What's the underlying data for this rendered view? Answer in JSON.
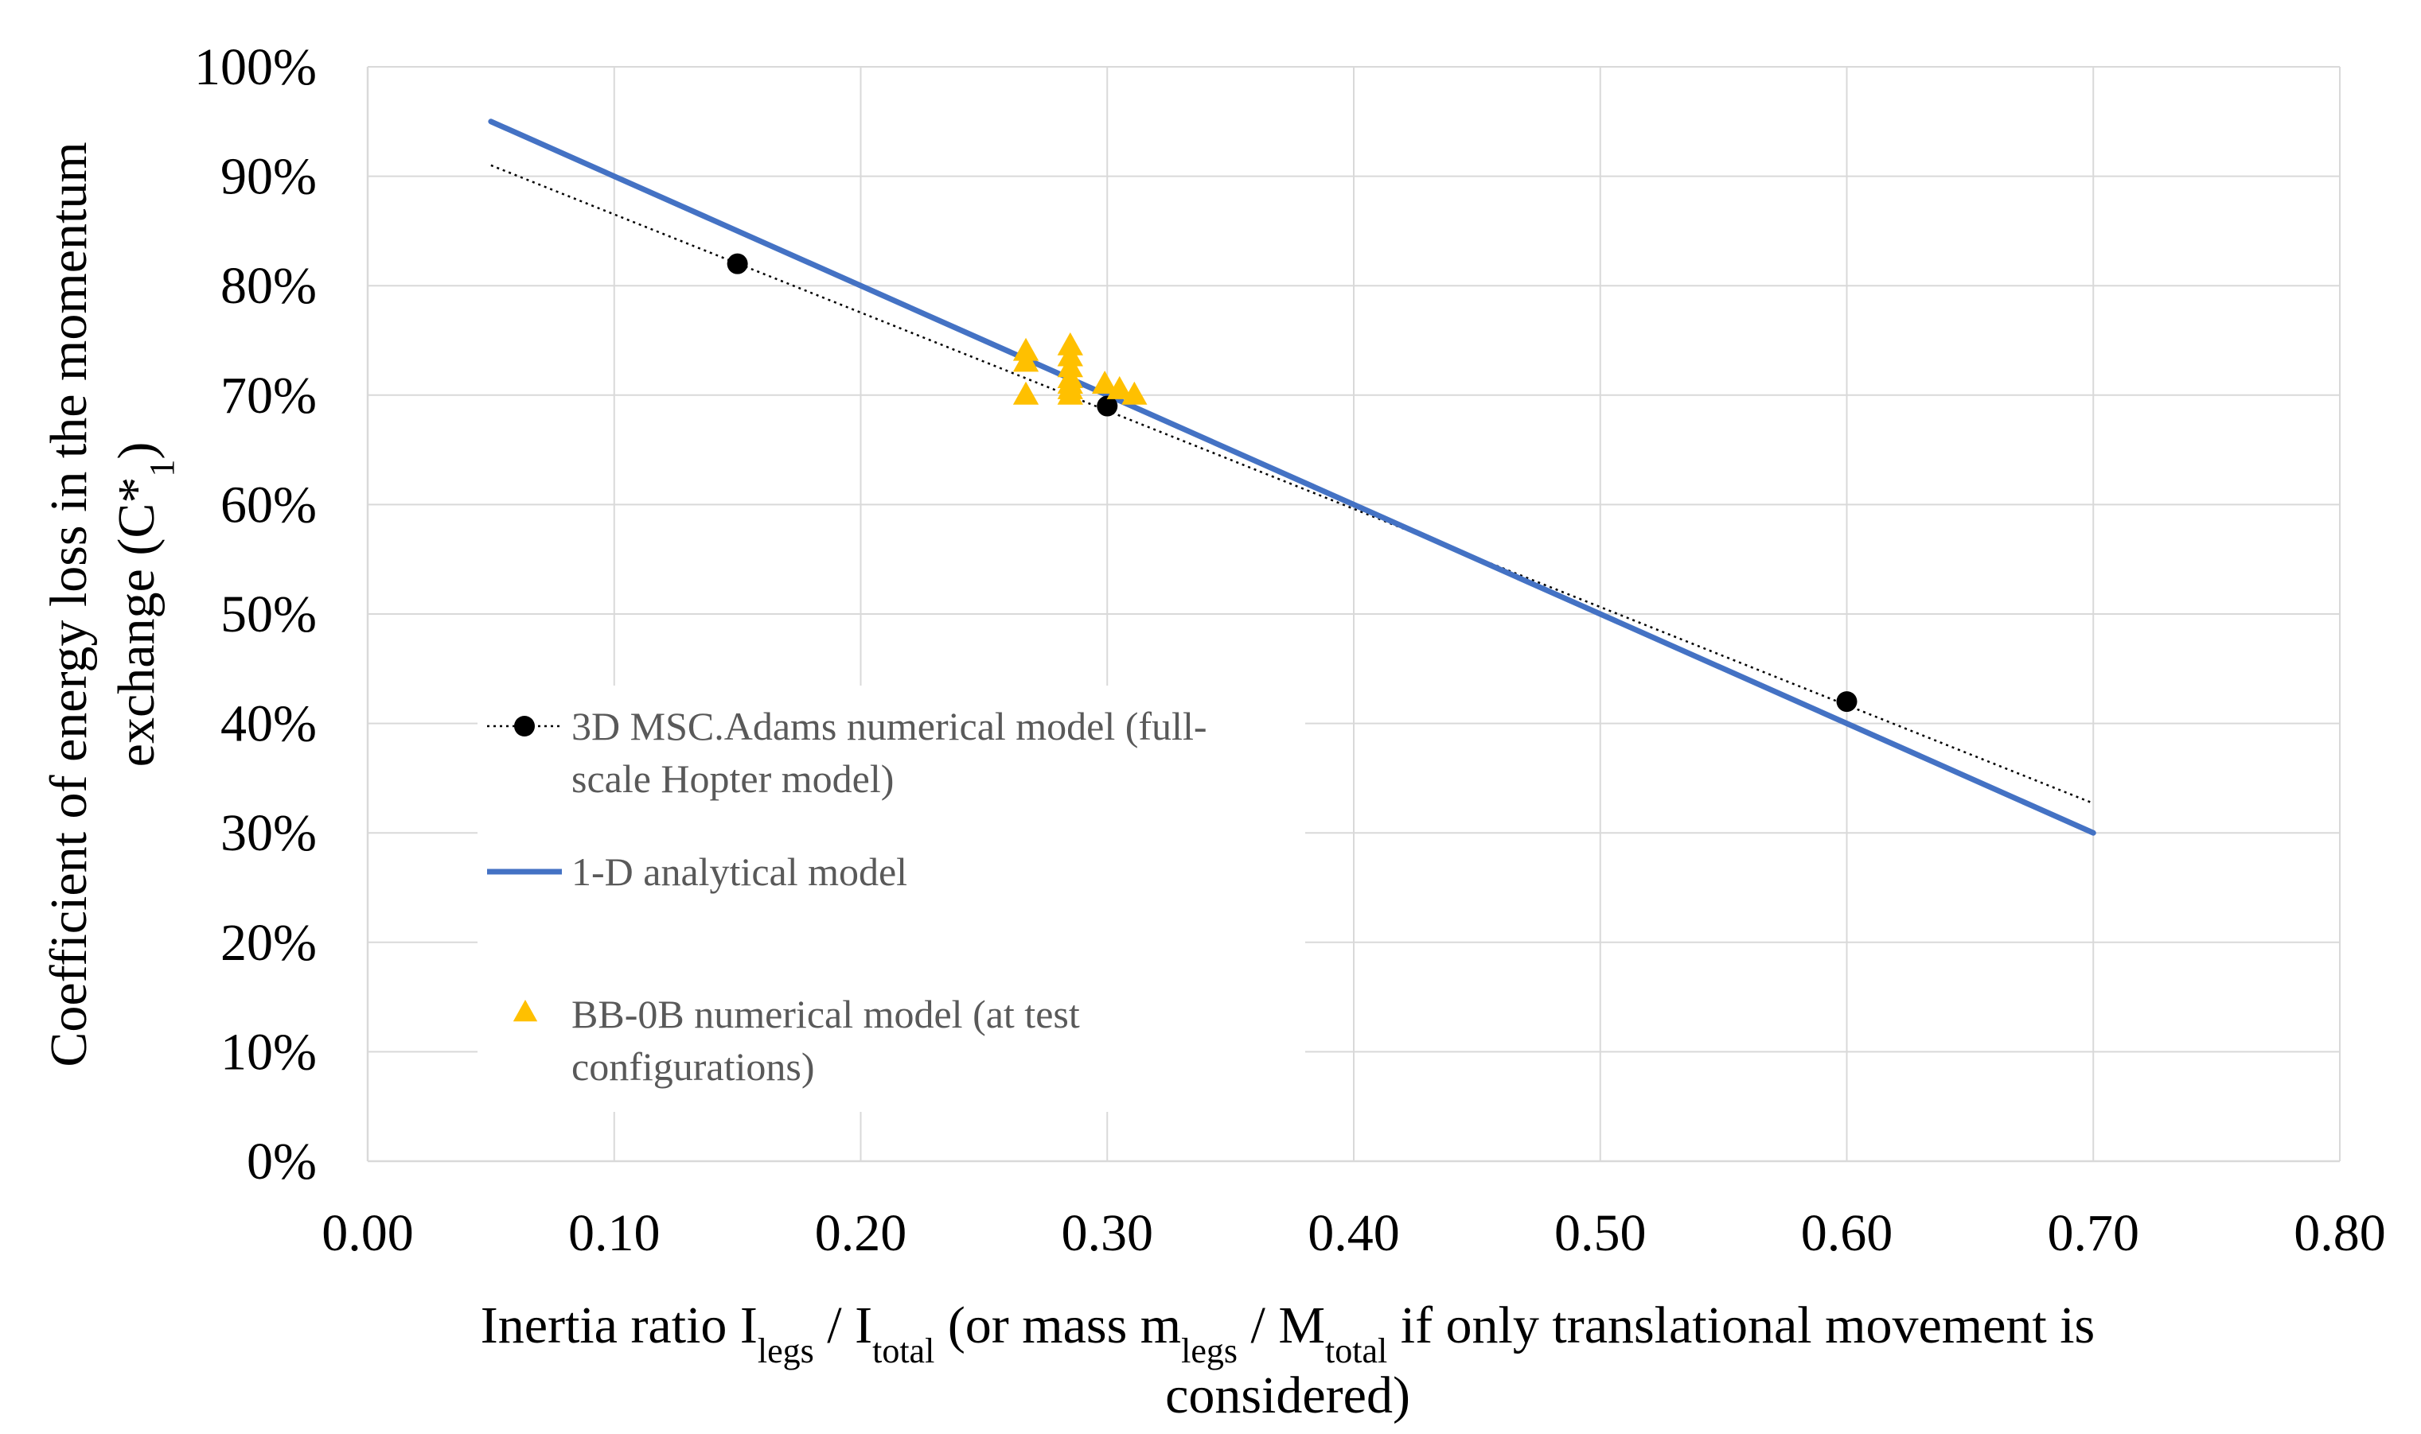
{
  "chart_data": {
    "type": "scatter",
    "title": "",
    "xlabel": {
      "line1": {
        "p1": "Inertia ratio I",
        "s1": "legs",
        "p2": " / I",
        "s2": "total",
        "p3": " (or mass m",
        "s3": "legs",
        "p4": " / M",
        "s4": "total",
        "p5": "  if only translational  movement is"
      },
      "line2": "considered)"
    },
    "ylabel": {
      "line1": "Coefficient of energy loss in the momentum",
      "line2": {
        "p1": "exchange (C*",
        "s1": "1",
        "p2": ")"
      }
    },
    "xlim": [
      0,
      0.8
    ],
    "ylim": [
      0,
      100
    ],
    "x_ticks": [
      0,
      0.1,
      0.2,
      0.3,
      0.4,
      0.5,
      0.6,
      0.7,
      0.8
    ],
    "x_tick_labels": [
      "0.00",
      "0.10",
      "0.20",
      "0.30",
      "0.40",
      "0.50",
      "0.60",
      "0.70",
      "0.80"
    ],
    "y_ticks": [
      0,
      10,
      20,
      30,
      40,
      50,
      60,
      70,
      80,
      90,
      100
    ],
    "y_tick_labels": [
      "0%",
      "10%",
      "20%",
      "30%",
      "40%",
      "50%",
      "60%",
      "70%",
      "80%",
      "90%",
      "100%"
    ],
    "grid": true,
    "legend_position": "middle-left",
    "series": [
      {
        "name": "3D MSC.Adams numerical model (full-scale Hopter model)",
        "legend_lines": [
          "3D MSC.Adams numerical model (full-",
          "scale Hopter model)"
        ],
        "marker": "circle",
        "color": "#000000",
        "x": [
          0.15,
          0.3,
          0.6
        ],
        "y": [
          82,
          69,
          42
        ],
        "trendline": {
          "style": "dotted",
          "color": "#000000",
          "x": [
            0.05,
            0.7
          ],
          "y": [
            91,
            32.7
          ]
        }
      },
      {
        "name": "1-D analytical model",
        "legend_lines": [
          "1-D analytical model"
        ],
        "marker": "line",
        "color": "#4472C4",
        "x": [
          0.05,
          0.7
        ],
        "y": [
          95,
          30
        ]
      },
      {
        "name": "BB-0B numerical model (at test configurations)",
        "legend_lines": [
          "BB-0B numerical model (at test",
          "configurations)"
        ],
        "marker": "triangle",
        "color": "#FFC000",
        "x": [
          0.267,
          0.267,
          0.267,
          0.285,
          0.285,
          0.285,
          0.285,
          0.285,
          0.285,
          0.285,
          0.299,
          0.305,
          0.311
        ],
        "y": [
          74,
          73,
          70,
          74.5,
          73.5,
          72.5,
          71.5,
          71,
          70.5,
          70,
          71,
          70.5,
          70
        ]
      }
    ]
  }
}
